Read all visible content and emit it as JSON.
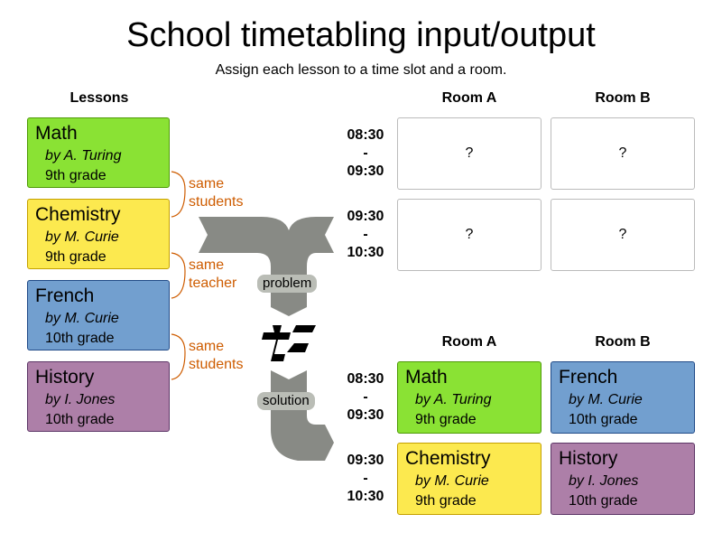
{
  "title": "School timetabling input/output",
  "subtitle": "Assign each lesson to a time slot and a room.",
  "lessons_header": "Lessons",
  "lessons": [
    {
      "subject": "Math",
      "teacher": "by  A. Turing",
      "grade": "9th grade",
      "color": "#8ae234"
    },
    {
      "subject": "Chemistry",
      "teacher": "by  M. Curie",
      "grade": "9th grade",
      "color": "#fce94f"
    },
    {
      "subject": "French",
      "teacher": "by  M. Curie",
      "grade": "10th grade",
      "color": "#729fcf"
    },
    {
      "subject": "History",
      "teacher": "by  I. Jones",
      "grade": "10th grade",
      "color": "#ad7fa8"
    }
  ],
  "relations": [
    {
      "l1": "same",
      "l2": "students"
    },
    {
      "l1": "same",
      "l2": "teacher"
    },
    {
      "l1": "same",
      "l2": "students"
    }
  ],
  "rooms": [
    "Room A",
    "Room B"
  ],
  "timeslots": [
    {
      "start": "08:30",
      "sep": "-",
      "end": "09:30"
    },
    {
      "start": "09:30",
      "sep": "-",
      "end": "10:30"
    }
  ],
  "unknown": "?",
  "problem_label": "problem",
  "solution_label": "solution"
}
